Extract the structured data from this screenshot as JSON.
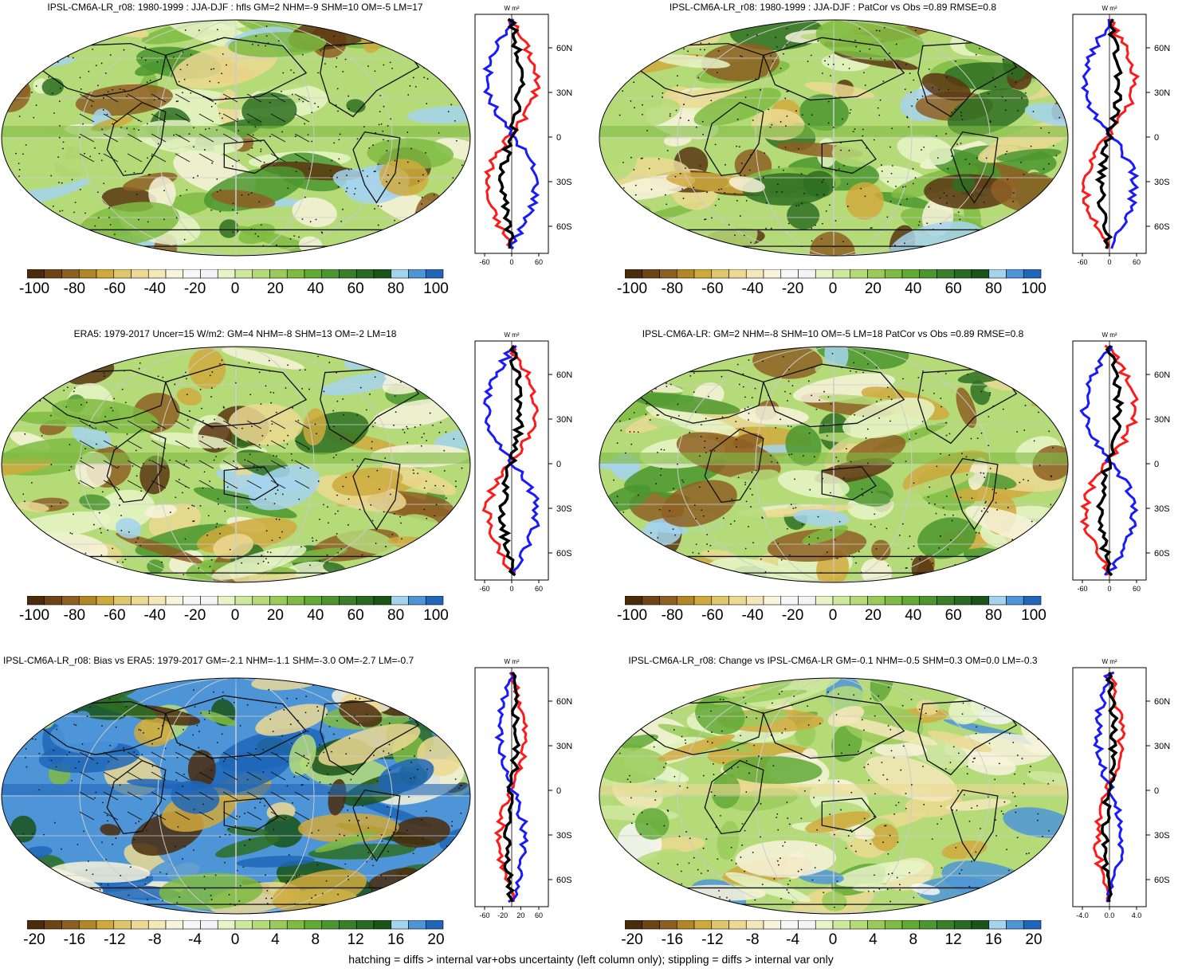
{
  "panels": [
    {
      "title": "IPSL-CM6A-LR_r08: 1980-1999 : JJA-DJF : hfls GM=2 NHM=-9 SHM=10 OM=-5 LM=17",
      "title_align": "center",
      "colorbar_labels": [
        "-100",
        "-80",
        "-60",
        "-40",
        "-20",
        "0",
        "20",
        "40",
        "60",
        "80",
        "100"
      ],
      "profile_units": "W m²",
      "profile_x_ticks": [
        "-60",
        "0",
        "60"
      ],
      "profile_y_ticks": [
        "60N",
        "30N",
        "0",
        "30S",
        "60S"
      ],
      "scheme": "large",
      "hatched": true
    },
    {
      "title": "IPSL-CM6A-LR_r08: 1980-1999 : JJA-DJF : PatCor vs Obs =0.89 RMSE=0.8",
      "title_align": "center",
      "colorbar_labels": [
        "-100",
        "-80",
        "-60",
        "-40",
        "-20",
        "0",
        "20",
        "40",
        "60",
        "80",
        "100"
      ],
      "profile_units": "W m²",
      "profile_x_ticks": [
        "-60",
        "0",
        "60"
      ],
      "profile_y_ticks": [
        "60N",
        "30N",
        "0",
        "30S",
        "60S"
      ],
      "scheme": "large",
      "hatched": false
    },
    {
      "title": "ERA5: 1979-2017 Uncer=15 W/m2: GM=4 NHM=-8 SHM=13 OM=-2 LM=18",
      "title_align": "center",
      "colorbar_labels": [
        "-100",
        "-80",
        "-60",
        "-40",
        "-20",
        "0",
        "20",
        "40",
        "60",
        "80",
        "100"
      ],
      "profile_units": "W m²",
      "profile_x_ticks": [
        "-60",
        "0",
        "60"
      ],
      "profile_y_ticks": [
        "60N",
        "30N",
        "0",
        "30S",
        "60S"
      ],
      "scheme": "large",
      "hatched": true
    },
    {
      "title": "IPSL-CM6A-LR: GM=2 NHM=-8 SHM=10 OM=-5 LM=18 PatCor vs Obs =0.89 RMSE=0.8",
      "title_align": "center",
      "colorbar_labels": [
        "-100",
        "-80",
        "-60",
        "-40",
        "-20",
        "0",
        "20",
        "40",
        "60",
        "80",
        "100"
      ],
      "profile_units": "W m²",
      "profile_x_ticks": [
        "-60",
        "0",
        "60"
      ],
      "profile_y_ticks": [
        "60N",
        "30N",
        "0",
        "30S",
        "60S"
      ],
      "scheme": "large",
      "hatched": false
    },
    {
      "title": "IPSL-CM6A-LR_r08: Bias vs ERA5: 1979-2017 GM=-2.1 NHM=-1.1 SHM=-3.0 OM=-2.7 LM=-0.7",
      "title_align": "left",
      "colorbar_labels": [
        "-20",
        "-16",
        "-12",
        "-8",
        "-4",
        "0",
        "4",
        "8",
        "12",
        "16",
        "20"
      ],
      "profile_units": "W m²",
      "profile_x_ticks": [
        "-60",
        "-20",
        "20",
        "60"
      ],
      "profile_y_ticks": [
        "60N",
        "30N",
        "0",
        "30S",
        "60S"
      ],
      "scheme": "bias",
      "hatched": true
    },
    {
      "title": "IPSL-CM6A-LR_r08: Change vs IPSL-CM6A-LR GM=-0.1 NHM=-0.5 SHM=0.3 OM=0.0 LM=-0.3",
      "title_align": "center",
      "colorbar_labels": [
        "-20",
        "-16",
        "-12",
        "-8",
        "-4",
        "0",
        "4",
        "8",
        "12",
        "16",
        "20"
      ],
      "profile_units": "W m²",
      "profile_x_ticks": [
        "-4.0",
        "0.0",
        "4.0"
      ],
      "profile_y_ticks": [
        "60N",
        "30N",
        "0",
        "30S",
        "60S"
      ],
      "scheme": "change",
      "hatched": false
    }
  ],
  "colorbar_colors": [
    "#4a2b0c",
    "#6e4417",
    "#8e5f23",
    "#b28627",
    "#d0a93d",
    "#dfc56b",
    "#ecd992",
    "#f4e8b8",
    "#f8f3dc",
    "#f7f7f7",
    "#f4f4f8",
    "#e8f4c8",
    "#cfe8a0",
    "#b5da78",
    "#9acb5a",
    "#7fbb42",
    "#62a936",
    "#4b962f",
    "#397f29",
    "#286a22",
    "#1a5418",
    "#a4d3ee",
    "#4e95d8",
    "#1f66b8"
  ],
  "footer": "hatching = diffs > internal var+obs uncertainty (left column only); stippling = diffs > internal var only"
}
